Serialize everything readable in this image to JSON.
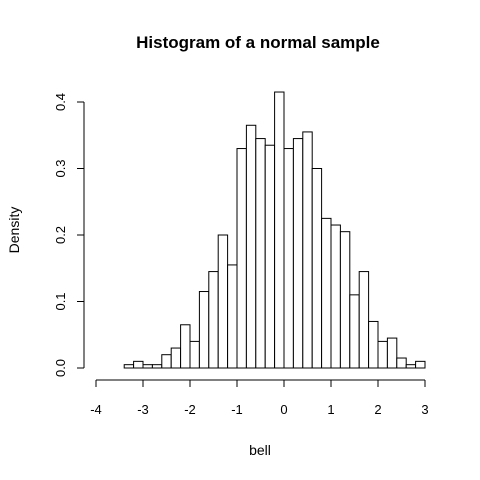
{
  "chart_data": {
    "type": "bar",
    "subtype": "histogram",
    "title": "Histogram of a normal sample",
    "xlabel": "bell",
    "ylabel": "Density",
    "xlim": [
      -4,
      3
    ],
    "ylim": [
      0,
      0.4
    ],
    "xticks": [
      "-4",
      "-3",
      "-2",
      "-1",
      "0",
      "1",
      "2",
      "3"
    ],
    "xtick_values": [
      -4,
      -3,
      -2,
      -1,
      0,
      1,
      2,
      3
    ],
    "yticks": [
      "0.0",
      "0.1",
      "0.2",
      "0.3",
      "0.4"
    ],
    "ytick_values": [
      0,
      0.1,
      0.2,
      0.3,
      0.4
    ],
    "bin_width": 0.2,
    "bin_start": -3.4,
    "values": [
      0.005,
      0.01,
      0.005,
      0.005,
      0.02,
      0.03,
      0.065,
      0.04,
      0.115,
      0.145,
      0.2,
      0.155,
      0.33,
      0.365,
      0.345,
      0.335,
      0.415,
      0.33,
      0.345,
      0.355,
      0.3,
      0.225,
      0.215,
      0.205,
      0.11,
      0.145,
      0.07,
      0.04,
      0.045,
      0.015,
      0.005,
      0.01
    ],
    "grid": false,
    "legend": "none"
  }
}
